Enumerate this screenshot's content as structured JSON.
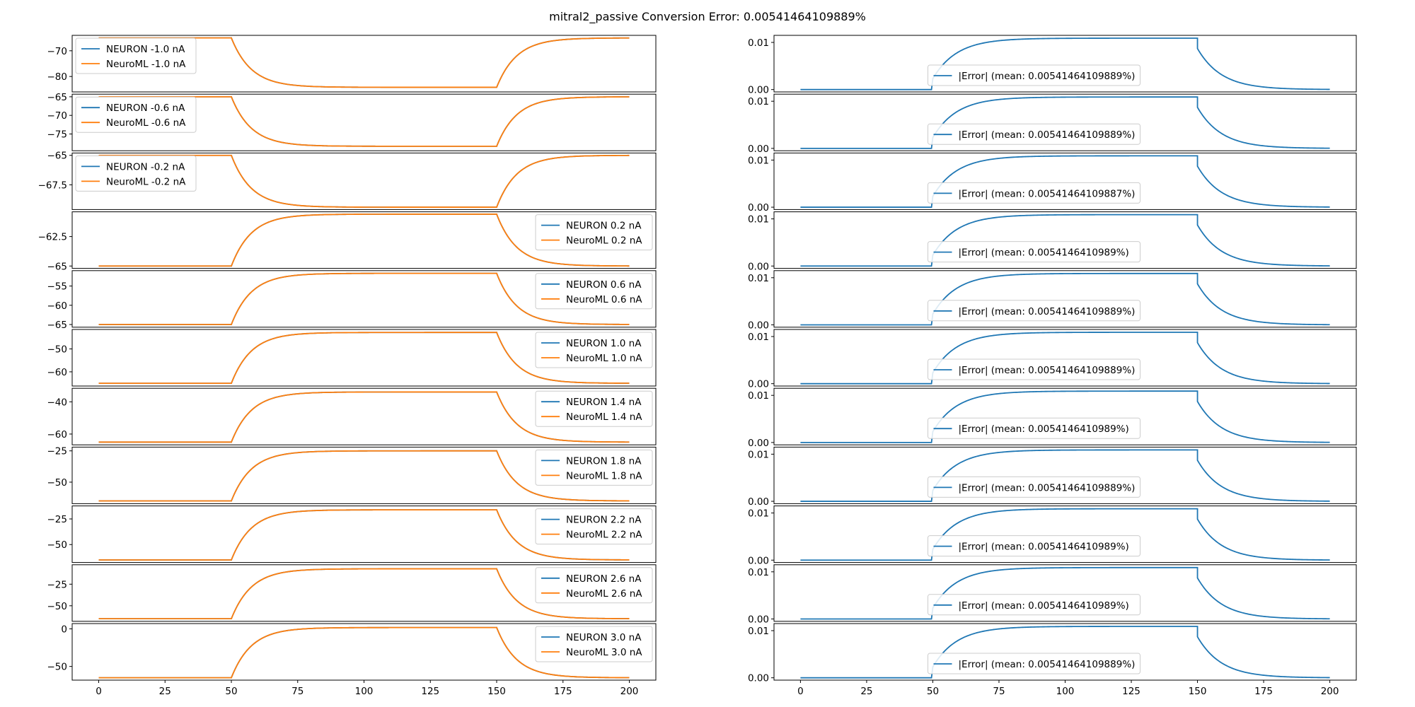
{
  "title": "mitral2_passive Conversion Error: 0.00541464109889%",
  "colors": {
    "neuron": "#1f77b4",
    "neuroml": "#ff7f0e",
    "error": "#1f77b4"
  },
  "chart_data": {
    "type": "line",
    "title": "mitral2_passive Conversion Error: 0.00541464109889%",
    "x_ticks": [
      0,
      25,
      50,
      75,
      100,
      125,
      150,
      175,
      200
    ],
    "xlim": [
      -10,
      210
    ],
    "stimulus": {
      "start": 50,
      "end": 150,
      "tau_on": 7.5,
      "tau_off": 7.5,
      "t_max": 200
    },
    "left_panels": [
      {
        "v0": -65.0,
        "vss": -84.2,
        "ylim": [
          -86.0,
          -64.0
        ],
        "yticks": [
          -70,
          -80
        ],
        "legend_loc": "upper-left",
        "series": [
          {
            "name": "NEURON -1.0 nA"
          },
          {
            "name": "NeuroML -1.0 nA"
          }
        ]
      },
      {
        "v0": -65.0,
        "vss": -78.3,
        "ylim": [
          -79.5,
          -64.3
        ],
        "yticks": [
          -65,
          -70,
          -75
        ],
        "legend_loc": "upper-left",
        "series": [
          {
            "name": "NEURON -0.6 nA"
          },
          {
            "name": "NeuroML -0.6 nA"
          }
        ]
      },
      {
        "v0": -65.0,
        "vss": -69.4,
        "ylim": [
          -69.6,
          -64.8
        ],
        "yticks": [
          -65.0,
          -67.5
        ],
        "legend_loc": "upper-left",
        "series": [
          {
            "name": "NEURON -0.2 nA"
          },
          {
            "name": "NeuroML -0.2 nA"
          }
        ]
      },
      {
        "v0": -65.0,
        "vss": -60.6,
        "ylim": [
          -65.2,
          -60.4
        ],
        "yticks": [
          -62.5,
          -65.0
        ],
        "legend_loc": "upper-right",
        "series": [
          {
            "name": "NEURON 0.2 nA"
          },
          {
            "name": "NeuroML 0.2 nA"
          }
        ]
      },
      {
        "v0": -65.0,
        "vss": -51.7,
        "ylim": [
          -65.7,
          -51.0
        ],
        "yticks": [
          -55,
          -60,
          -65
        ],
        "legend_loc": "upper-right",
        "series": [
          {
            "name": "NEURON 0.6 nA"
          },
          {
            "name": "NeuroML 0.6 nA"
          }
        ]
      },
      {
        "v0": -65.0,
        "vss": -42.8,
        "ylim": [
          -66.2,
          -41.5
        ],
        "yticks": [
          -50,
          -60
        ],
        "legend_loc": "upper-right",
        "series": [
          {
            "name": "NEURON 1.0 nA"
          },
          {
            "name": "NeuroML 1.0 nA"
          }
        ]
      },
      {
        "v0": -65.0,
        "vss": -33.9,
        "ylim": [
          -66.7,
          -31.6
        ],
        "yticks": [
          -40,
          -60
        ],
        "legend_loc": "upper-right",
        "series": [
          {
            "name": "NEURON 1.4 nA"
          },
          {
            "name": "NeuroML 1.4 nA"
          }
        ]
      },
      {
        "v0": -65.0,
        "vss": -25.0,
        "ylim": [
          -67.2,
          -22.0
        ],
        "yticks": [
          -25,
          -50
        ],
        "legend_loc": "upper-right",
        "series": [
          {
            "name": "NEURON 1.8 nA"
          },
          {
            "name": "NeuroML 1.8 nA"
          }
        ]
      },
      {
        "v0": -65.0,
        "vss": -16.1,
        "ylim": [
          -67.5,
          -12.3
        ],
        "yticks": [
          -25,
          -50
        ],
        "legend_loc": "upper-right",
        "series": [
          {
            "name": "NEURON 2.2 nA"
          },
          {
            "name": "NeuroML 2.2 nA"
          }
        ]
      },
      {
        "v0": -65.0,
        "vss": -7.2,
        "ylim": [
          -68.0,
          -2.5
        ],
        "yticks": [
          -25,
          -50
        ],
        "legend_loc": "upper-right",
        "series": [
          {
            "name": "NEURON 2.6 nA"
          },
          {
            "name": "NeuroML 2.6 nA"
          }
        ]
      },
      {
        "v0": -65.0,
        "vss": 1.7,
        "ylim": [
          -68.2,
          7.0
        ],
        "yticks": [
          0,
          -50
        ],
        "legend_loc": "upper-right",
        "series": [
          {
            "name": "NEURON 3.0 nA"
          },
          {
            "name": "NeuroML 3.0 nA"
          }
        ]
      }
    ],
    "right_panels": [
      {
        "label": "|Error| (mean: 0.00541464109889%)"
      },
      {
        "label": "|Error| (mean: 0.00541464109889%)"
      },
      {
        "label": "|Error| (mean: 0.00541464109887%)"
      },
      {
        "label": "|Error| (mean: 0.0054146410989%)"
      },
      {
        "label": "|Error| (mean: 0.00541464109889%)"
      },
      {
        "label": "|Error| (mean: 0.00541464109889%)"
      },
      {
        "label": "|Error| (mean: 0.0054146410989%)"
      },
      {
        "label": "|Error| (mean: 0.00541464109889%)"
      },
      {
        "label": "|Error| (mean: 0.0054146410989%)"
      },
      {
        "label": "|Error| (mean: 0.0054146410989%)"
      },
      {
        "label": "|Error| (mean: 0.00541464109889%)"
      }
    ],
    "error_curve": {
      "ylim": [
        -0.0005,
        0.0115
      ],
      "yticks": [
        0.0,
        0.01
      ],
      "ytick_labels": [
        "0.00",
        "0.01"
      ],
      "jump_on": 0.0023,
      "peak": 0.0109,
      "after_off": 0.0087
    }
  }
}
